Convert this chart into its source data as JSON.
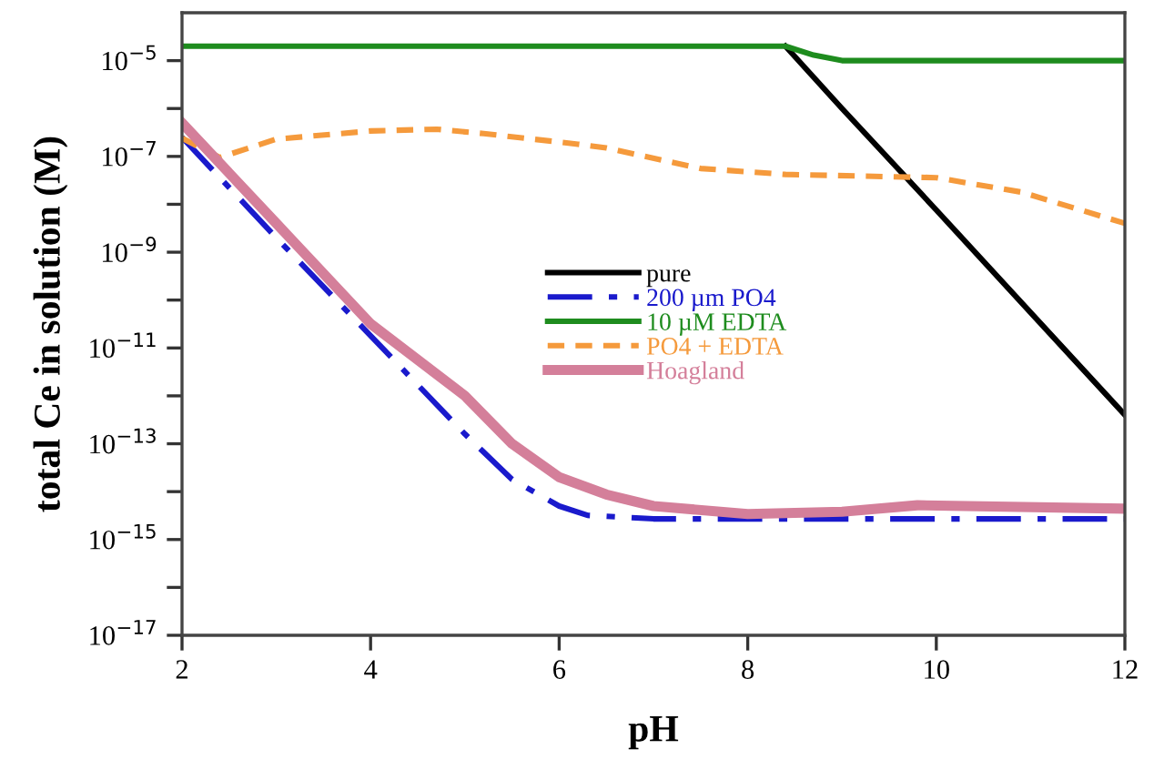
{
  "chart_data": {
    "type": "line",
    "xlabel": "pH",
    "ylabel": "total Ce in solution (M)",
    "log": "y",
    "xlim": [
      2,
      12
    ],
    "xticks": [
      2,
      4,
      6,
      8,
      10,
      12
    ],
    "ylim": [
      1e-17,
      0.0001
    ],
    "yticks": [
      {
        "value": 1e-17,
        "label": "10$^{−17}$"
      },
      {
        "value": 1e-16,
        "label": null
      },
      {
        "value": 1e-15,
        "label": "10$^{−15}$"
      },
      {
        "value": 1e-14,
        "label": null
      },
      {
        "value": 1e-13,
        "label": "10$^{−13}$"
      },
      {
        "value": 1e-12,
        "label": null
      },
      {
        "value": 1e-11,
        "label": "10$^{−11}$"
      },
      {
        "value": 1e-10,
        "label": null
      },
      {
        "value": 1e-09,
        "label": "10$^{−9}$"
      },
      {
        "value": 1e-08,
        "label": null
      },
      {
        "value": 1e-07,
        "label": "10$^{−7}$"
      },
      {
        "value": 1e-06,
        "label": null
      },
      {
        "value": 1e-05,
        "label": "10$^{−5}$"
      }
    ],
    "grid": false,
    "legend": "center right",
    "series": [
      {
        "name": "pure",
        "color": "#000000",
        "line_style": "solid",
        "x": [
          8.4,
          9,
          10,
          11,
          12
        ],
        "values": [
          2e-05,
          1e-06,
          7.6e-09,
          5.5e-11,
          4e-13
        ]
      },
      {
        "name": "200 µm PO4",
        "color": "#1a1acc",
        "line_style": "dashed",
        "x": [
          2,
          3,
          4,
          5,
          5.5,
          6,
          6.3,
          7,
          12
        ],
        "values": [
          2.5e-07,
          2e-09,
          1.8e-11,
          1.6e-13,
          1.8e-14,
          5e-15,
          3.2e-15,
          2.7e-15,
          2.7e-15
        ]
      },
      {
        "name": "10 µM EDTA",
        "color": "#1e8c1e",
        "line_style": "solid",
        "x": [
          2,
          8.4,
          8.7,
          9,
          12
        ],
        "values": [
          2e-05,
          2e-05,
          1.3e-05,
          1e-05,
          1e-05
        ]
      },
      {
        "name": "PO4 + EDTA",
        "color": "#f59a3c",
        "line_style": "dotted",
        "x": [
          2,
          2.4,
          3,
          4,
          4.7,
          5.2,
          6.2,
          6.5,
          7.5,
          8.4,
          10,
          10.9,
          12
        ],
        "values": [
          2.4e-07,
          9.5e-08,
          2.3e-07,
          3.4e-07,
          3.7e-07,
          3e-07,
          1.8e-07,
          1.5e-07,
          5.6e-08,
          4.2e-08,
          3.6e-08,
          1.8e-08,
          4e-09
        ]
      },
      {
        "name": "Hoagland",
        "color": "#d47f9a",
        "line_style": "solid",
        "x": [
          2,
          3,
          4,
          5,
          5.5,
          6,
          6.5,
          7,
          8,
          9,
          9.8,
          12
        ],
        "values": [
          5e-07,
          4e-09,
          3.2e-11,
          1e-12,
          1e-13,
          2e-14,
          8.7e-15,
          5e-15,
          3.4e-15,
          3.8e-15,
          5.2e-15,
          4.4e-15
        ]
      }
    ]
  }
}
